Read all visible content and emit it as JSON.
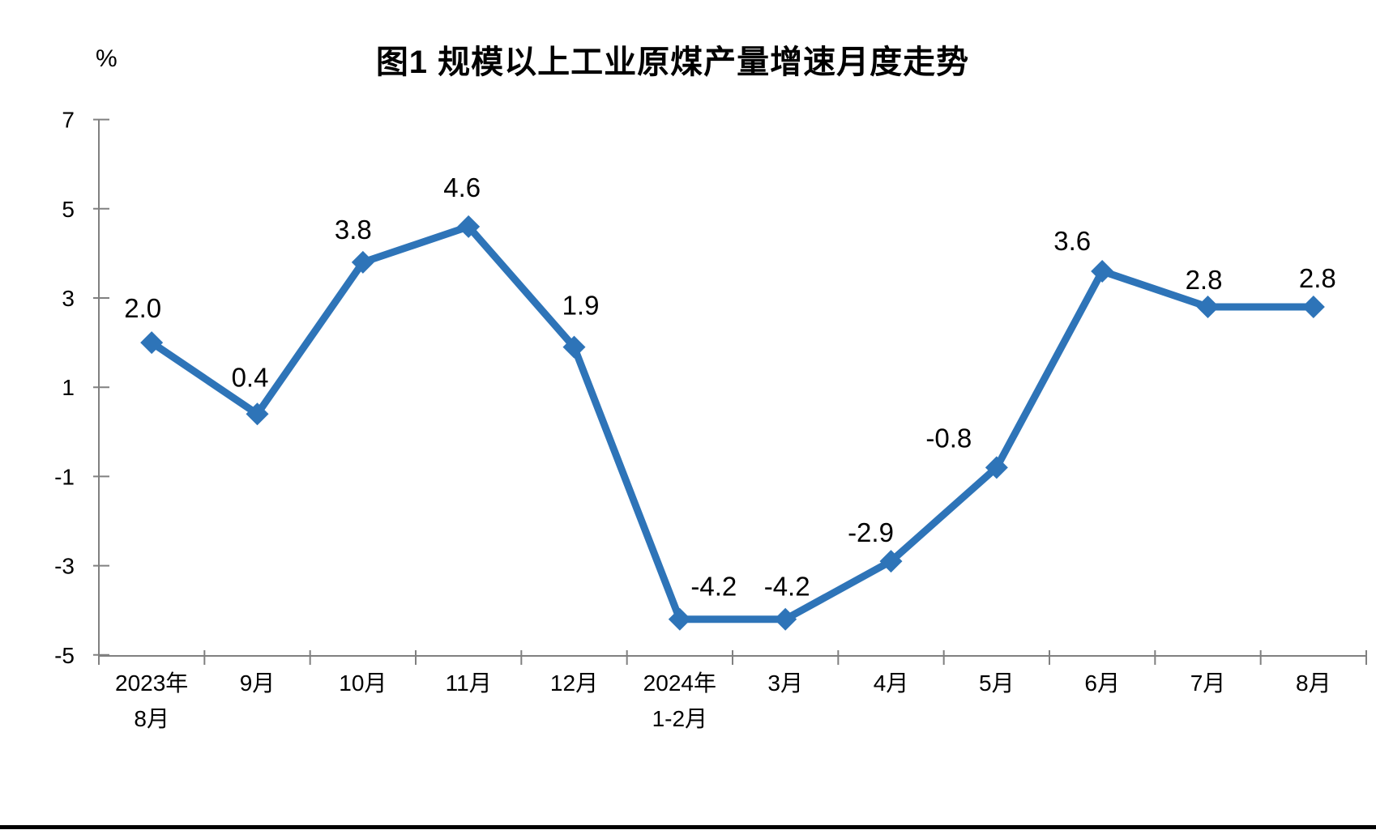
{
  "chart_data": {
    "type": "line",
    "title": "图1  规模以上工业原煤产量增速月度走势",
    "ylabel": "%",
    "xlabel": "",
    "categories": [
      "2023年8月",
      "9月",
      "10月",
      "11月",
      "12月",
      "2024年1-2月",
      "3月",
      "4月",
      "5月",
      "6月",
      "7月",
      "8月"
    ],
    "x_tick_lines": [
      [
        "2023年",
        "8月"
      ],
      [
        "9月"
      ],
      [
        "10月"
      ],
      [
        "11月"
      ],
      [
        "12月"
      ],
      [
        "2024年",
        "1-2月"
      ],
      [
        "3月"
      ],
      [
        "4月"
      ],
      [
        "5月"
      ],
      [
        "6月"
      ],
      [
        "7月"
      ],
      [
        "8月"
      ]
    ],
    "values": [
      2.0,
      0.4,
      3.8,
      4.6,
      1.9,
      -4.2,
      -4.2,
      -2.9,
      -0.8,
      3.6,
      2.8,
      2.8
    ],
    "data_labels": [
      "2.0",
      "0.4",
      "3.8",
      "4.6",
      "1.9",
      "-4.2",
      "-4.2",
      "-2.9",
      "-0.8",
      "3.6",
      "2.8",
      "2.8"
    ],
    "y_ticks": [
      7,
      5,
      3,
      1,
      -1,
      -3,
      -5
    ],
    "ylim": [
      -5,
      7
    ],
    "grid": false,
    "legend": false,
    "marker": "diamond",
    "line_color": "#2E74B8",
    "axis_color": "#808080",
    "text_color": "#000000"
  }
}
